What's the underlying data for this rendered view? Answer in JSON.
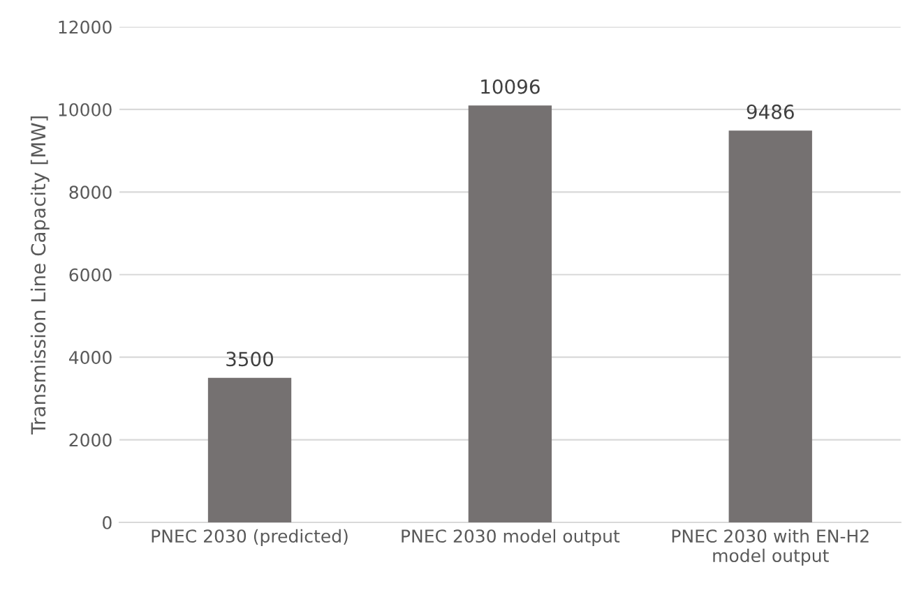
{
  "chart_data": {
    "type": "bar",
    "ylabel": "Transmission Line Capacity [MW]",
    "categories": [
      "PNEC 2030 (predicted)",
      "PNEC 2030 model output",
      "PNEC 2030 with EN-H2\nmodel output"
    ],
    "values": [
      3500,
      10096,
      9486
    ],
    "color": "#757171",
    "ylim": [
      0,
      12000
    ],
    "yticks": [
      0,
      2000,
      4000,
      6000,
      8000,
      10000,
      12000
    ],
    "grid": "y",
    "data_labels": true
  }
}
